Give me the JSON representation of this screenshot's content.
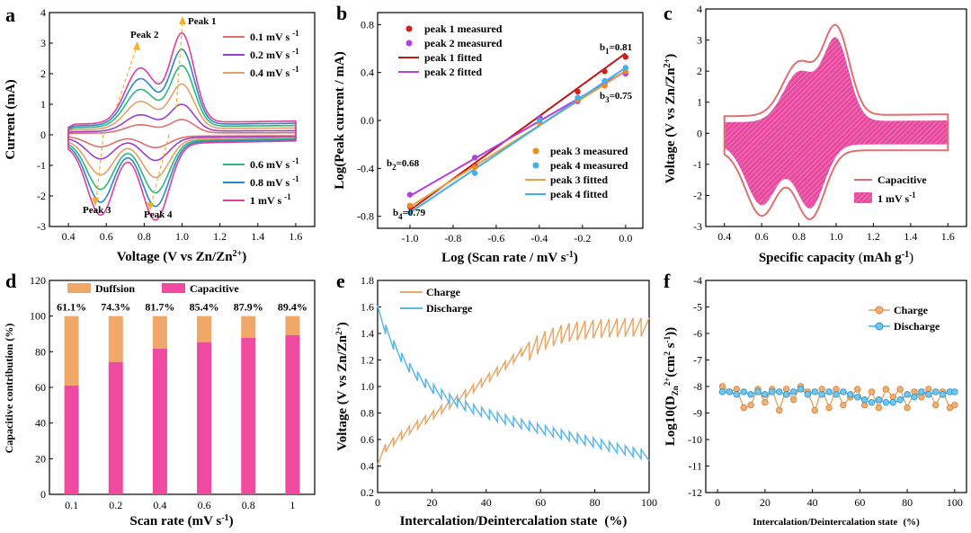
{
  "chart_data": [
    {
      "panel": "a",
      "type": "line",
      "title": "",
      "xlabel": "Voltage (V vs Zn/Zn",
      "xlabel_sup": "2+",
      "xlabel_end": ")",
      "ylabel": "Current (mA)",
      "xlim": [
        0.3,
        1.7
      ],
      "ylim": [
        -3,
        4
      ],
      "xticks": [
        0.4,
        0.6,
        0.8,
        1.0,
        1.2,
        1.4,
        1.6
      ],
      "yticks": [
        -3,
        -2,
        -1,
        0,
        1,
        2,
        3,
        4
      ],
      "peak_labels": [
        "Peak 1",
        "Peak 2",
        "Peak 3",
        "Peak 4"
      ],
      "series": [
        {
          "name": "0.1 mV s",
          "sup": "-1",
          "color": "#e07070",
          "scale": 0.15
        },
        {
          "name": "0.2 mV s",
          "sup": "-1",
          "color": "#9a40c8",
          "scale": 0.3
        },
        {
          "name": "0.4 mV s",
          "sup": "-1",
          "color": "#e5a06a",
          "scale": 0.5
        },
        {
          "name": "0.6 mV s",
          "sup": "-1",
          "color": "#2cb87a",
          "scale": 0.68
        },
        {
          "name": "0.8 mV s",
          "sup": "-1",
          "color": "#2a88c8",
          "scale": 0.84
        },
        {
          "name": "1   mV s",
          "sup": "-1",
          "color": "#e0409a",
          "scale": 1.0
        }
      ]
    },
    {
      "panel": "b",
      "type": "scatter",
      "xlabel": "Log (Scan rate / mV s",
      "xlabel_sup": "-1",
      "xlabel_end": ")",
      "ylabel": "Log(Peak current / mA)",
      "xlim": [
        -1.15,
        0.08
      ],
      "ylim": [
        -0.9,
        0.9
      ],
      "xticks": [
        -1.0,
        -0.8,
        -0.6,
        -0.4,
        -0.2,
        0.0
      ],
      "yticks": [
        -0.8,
        -0.4,
        0.0,
        0.4,
        0.8
      ],
      "x": [
        -1.0,
        -0.699,
        -0.398,
        -0.222,
        -0.097,
        0.0
      ],
      "series": [
        {
          "name": "peak 1  measured",
          "color": "#d02020",
          "values": [
            -0.72,
            -0.38,
            0.02,
            0.24,
            0.41,
            0.53
          ]
        },
        {
          "name": "peak 2  measured",
          "color": "#b040e0",
          "values": [
            -0.62,
            -0.31,
            0.02,
            0.16,
            0.3,
            0.39
          ]
        },
        {
          "name": "peak 3  measured",
          "color": "#f08a20",
          "values": [
            -0.71,
            -0.39,
            -0.02,
            0.17,
            0.29,
            0.41
          ]
        },
        {
          "name": "peak 4  measured",
          "color": "#40b0e8",
          "values": [
            -0.77,
            -0.44,
            0.0,
            0.19,
            0.33,
            0.44
          ]
        }
      ],
      "fits": [
        {
          "name": "peak 1  fitted",
          "color": "#c01818",
          "y0": -0.75,
          "y1": 0.56
        },
        {
          "name": "peak 2  fitted",
          "color": "#b040e0",
          "y0": -0.63,
          "y1": 0.41
        },
        {
          "name": "peak 3  fitted",
          "color": "#e8a040",
          "y0": -0.72,
          "y1": 0.41
        },
        {
          "name": "peak 4  fitted",
          "color": "#40b0e8",
          "y0": -0.77,
          "y1": 0.44
        }
      ],
      "annotations": {
        "b1": {
          "base": "b",
          "sub": "1",
          "val": "=0.81"
        },
        "b2": {
          "base": "b",
          "sub": "2",
          "val": "=0.68"
        },
        "b3": {
          "base": "b",
          "sub": "3",
          "val": "=0.75"
        },
        "b4": {
          "base": "b",
          "sub": "4",
          "val": "=0.79"
        }
      }
    },
    {
      "panel": "c",
      "type": "area",
      "xlabel": "Specific capacity",
      "xlabel_unit": "mAh g",
      "xlabel_sup": "-1",
      "ylabel": "Voltage (V vs Zn/Zn",
      "ylabel_sup": "2+",
      "ylabel_end": ")",
      "xlim": [
        0.3,
        1.7
      ],
      "ylim": [
        -3,
        4
      ],
      "xticks": [
        0.4,
        0.6,
        0.8,
        1.0,
        1.2,
        1.4,
        1.6
      ],
      "yticks": [
        -3,
        -2,
        -1,
        0,
        1,
        2,
        3,
        4
      ],
      "legend": [
        {
          "name": "Capacitive",
          "color": "#e07070"
        },
        {
          "name": "1 mV s",
          "sup": "-1",
          "color": "#e84aa0"
        }
      ]
    },
    {
      "panel": "d",
      "type": "bar",
      "xlabel": "Scan rate (mV s",
      "xlabel_sup": "-1",
      "xlabel_end": ")",
      "ylabel": "Capacitive contribution  (%)",
      "ylim": [
        0,
        120
      ],
      "yticks": [
        0,
        20,
        40,
        60,
        80,
        100,
        120
      ],
      "categories": [
        "0.1",
        "0.2",
        "0.4",
        "0.6",
        "0.8",
        "1"
      ],
      "series": [
        {
          "name": "Capacitive",
          "color": "#f04aa0",
          "values": [
            61.1,
            74.3,
            81.7,
            85.4,
            87.9,
            89.4
          ]
        },
        {
          "name": "Duffsion",
          "color": "#f0a868",
          "values": [
            38.9,
            25.7,
            18.3,
            14.6,
            12.1,
            10.6
          ]
        }
      ],
      "data_labels": [
        "61.1%",
        "74.3%",
        "81.7%",
        "85.4%",
        "87.9%",
        "89.4%"
      ]
    },
    {
      "panel": "e",
      "type": "line",
      "xlabel": "Intercalation/Deintercalation state",
      "xlabel_unit": "(%)",
      "ylabel": "Voltage (V vs Zn/Zn",
      "ylabel_sup": "2+",
      "ylabel_end": ")",
      "xlim": [
        0,
        100
      ],
      "ylim": [
        0.2,
        1.8
      ],
      "xticks": [
        0,
        20,
        40,
        60,
        80,
        100
      ],
      "yticks": [
        0.2,
        0.4,
        0.6,
        0.8,
        1.0,
        1.2,
        1.4,
        1.6,
        1.8
      ],
      "series": [
        {
          "name": "Charge",
          "color": "#e8a868"
        },
        {
          "name": "Discharge",
          "color": "#5ab8e8"
        }
      ]
    },
    {
      "panel": "f",
      "type": "line",
      "xlabel": "Intercalation/Deintercalation state",
      "xlabel_unit": "(%)",
      "ylabel": "Log10(D",
      "ylabel_sub": "Zn",
      "ylabel_sup": "2+",
      "ylabel_end": "(cm",
      "ylabel_sup2": "2",
      "ylabel_end2": " s",
      "ylabel_sup3": "-1",
      "ylabel_end3": "))",
      "xlim": [
        -5,
        105
      ],
      "ylim": [
        -12,
        -4
      ],
      "xticks": [
        0,
        20,
        40,
        60,
        80,
        100
      ],
      "yticks": [
        -12,
        -11,
        -10,
        -9,
        -8,
        -7,
        -6,
        -5,
        -4
      ],
      "x": [
        2,
        5,
        8,
        11,
        14,
        17,
        20,
        23,
        26,
        29,
        32,
        35,
        38,
        41,
        44,
        47,
        50,
        53,
        56,
        59,
        62,
        65,
        68,
        71,
        74,
        77,
        80,
        83,
        86,
        89,
        92,
        95,
        98,
        100
      ],
      "series": [
        {
          "name": "Charge",
          "color": "#e8a060",
          "values": [
            -8.0,
            -8.2,
            -8.1,
            -8.8,
            -8.7,
            -8.1,
            -8.6,
            -8.1,
            -8.9,
            -8.1,
            -8.5,
            -8.0,
            -8.2,
            -8.9,
            -8.1,
            -8.8,
            -8.1,
            -8.7,
            -8.4,
            -8.1,
            -8.7,
            -8.2,
            -8.8,
            -8.1,
            -8.4,
            -8.1,
            -8.8,
            -8.2,
            -8.4,
            -8.1,
            -8.7,
            -8.2,
            -8.8,
            -8.7
          ]
        },
        {
          "name": "Discharge",
          "color": "#40b0e8",
          "values": [
            -8.2,
            -8.2,
            -8.3,
            -8.2,
            -8.3,
            -8.2,
            -8.3,
            -8.2,
            -8.2,
            -8.3,
            -8.2,
            -8.1,
            -8.3,
            -8.2,
            -8.3,
            -8.2,
            -8.3,
            -8.2,
            -8.3,
            -8.4,
            -8.5,
            -8.6,
            -8.5,
            -8.6,
            -8.6,
            -8.5,
            -8.3,
            -8.4,
            -8.2,
            -8.3,
            -8.2,
            -8.3,
            -8.2,
            -8.2
          ]
        }
      ]
    }
  ]
}
